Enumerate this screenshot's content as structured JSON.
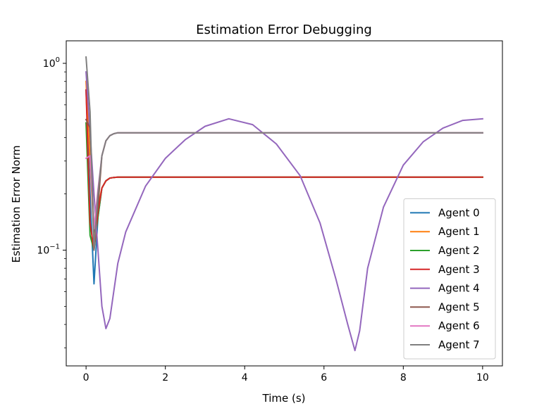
{
  "chart_data": {
    "type": "line",
    "title": "Estimation Error Debugging",
    "xlabel": "Time (s)",
    "ylabel": "Estimation Error Norm",
    "xscale": "linear",
    "yscale": "log",
    "xlim": [
      -0.5,
      10.5
    ],
    "ylim": [
      0.024,
      1.32
    ],
    "xticks": [
      0,
      2,
      4,
      6,
      8,
      10
    ],
    "xtick_labels": [
      "0",
      "2",
      "4",
      "6",
      "8",
      "10"
    ],
    "yticks_major": [
      0.1,
      1.0
    ],
    "ytick_labels": [
      "10^-1",
      "10^0"
    ],
    "grid": false,
    "legend_position": "lower-right",
    "series": [
      {
        "name": "Agent 0",
        "color": "#1f77b4",
        "x": [
          0,
          0.1,
          0.2,
          0.3,
          0.4,
          0.5,
          0.6,
          0.7,
          0.8,
          0.9,
          1.0,
          2,
          4,
          6,
          8,
          10
        ],
        "y": [
          0.72,
          0.2,
          0.066,
          0.15,
          0.215,
          0.235,
          0.243,
          0.245,
          0.246,
          0.246,
          0.246,
          0.246,
          0.246,
          0.246,
          0.246,
          0.246
        ]
      },
      {
        "name": "Agent 1",
        "color": "#ff7f0e",
        "x": [
          0,
          0.1,
          0.2,
          0.3,
          0.4,
          0.5,
          0.6,
          0.7,
          0.8,
          0.9,
          1.0,
          2,
          4,
          6,
          8,
          10
        ],
        "y": [
          0.8,
          0.3,
          0.12,
          0.17,
          0.215,
          0.235,
          0.243,
          0.245,
          0.246,
          0.246,
          0.246,
          0.246,
          0.246,
          0.246,
          0.246,
          0.246
        ]
      },
      {
        "name": "Agent 2",
        "color": "#2ca02c",
        "x": [
          0,
          0.1,
          0.2,
          0.3,
          0.4,
          0.5,
          0.6,
          0.7,
          0.8,
          0.9,
          1.0,
          2,
          4,
          6,
          8,
          10
        ],
        "y": [
          0.48,
          0.12,
          0.1,
          0.15,
          0.215,
          0.235,
          0.243,
          0.245,
          0.246,
          0.246,
          0.246,
          0.246,
          0.246,
          0.246,
          0.246,
          0.246
        ]
      },
      {
        "name": "Agent 3",
        "color": "#d62728",
        "x": [
          0,
          0.1,
          0.2,
          0.3,
          0.4,
          0.5,
          0.6,
          0.7,
          0.8,
          0.9,
          1.0,
          2,
          4,
          6,
          8,
          10
        ],
        "y": [
          0.72,
          0.14,
          0.1,
          0.16,
          0.215,
          0.235,
          0.243,
          0.245,
          0.246,
          0.246,
          0.246,
          0.246,
          0.246,
          0.246,
          0.246,
          0.246
        ]
      },
      {
        "name": "Agent 4",
        "color": "#9467bd",
        "x": [
          0,
          0.1,
          0.2,
          0.3,
          0.4,
          0.5,
          0.6,
          0.8,
          1.0,
          1.5,
          2.0,
          2.5,
          3.0,
          3.6,
          4.2,
          4.8,
          5.4,
          5.9,
          6.3,
          6.6,
          6.78,
          6.9,
          7.1,
          7.5,
          8.0,
          8.5,
          9.0,
          9.5,
          10.0
        ],
        "y": [
          0.9,
          0.42,
          0.2,
          0.1,
          0.05,
          0.038,
          0.043,
          0.085,
          0.125,
          0.22,
          0.31,
          0.39,
          0.46,
          0.505,
          0.47,
          0.37,
          0.25,
          0.14,
          0.07,
          0.04,
          0.029,
          0.037,
          0.08,
          0.17,
          0.285,
          0.38,
          0.45,
          0.495,
          0.505
        ]
      },
      {
        "name": "Agent 5",
        "color": "#8c564b",
        "x": [
          0,
          0.1,
          0.2,
          0.3,
          0.4,
          0.5,
          0.6,
          0.7,
          0.8,
          0.9,
          1.0,
          2,
          4,
          6,
          8,
          10
        ],
        "y": [
          0.5,
          0.45,
          0.125,
          0.17,
          0.32,
          0.385,
          0.41,
          0.42,
          0.425,
          0.425,
          0.425,
          0.425,
          0.425,
          0.425,
          0.425,
          0.425
        ]
      },
      {
        "name": "Agent 6",
        "color": "#e377c2",
        "x": [
          0,
          0.1,
          0.2,
          0.3,
          0.4,
          0.5,
          0.6,
          0.7,
          0.8,
          0.9,
          1.0,
          2,
          4,
          6,
          8,
          10
        ],
        "y": [
          0.31,
          0.32,
          0.13,
          0.21,
          0.32,
          0.385,
          0.41,
          0.42,
          0.425,
          0.425,
          0.425,
          0.425,
          0.425,
          0.425,
          0.425,
          0.425
        ]
      },
      {
        "name": "Agent 7",
        "color": "#7f7f7f",
        "x": [
          0,
          0.1,
          0.2,
          0.3,
          0.4,
          0.5,
          0.6,
          0.7,
          0.8,
          0.9,
          1.0,
          2,
          4,
          6,
          8,
          10
        ],
        "y": [
          1.08,
          0.55,
          0.1,
          0.2,
          0.32,
          0.385,
          0.41,
          0.42,
          0.425,
          0.425,
          0.425,
          0.425,
          0.425,
          0.425,
          0.425,
          0.425
        ]
      }
    ]
  }
}
